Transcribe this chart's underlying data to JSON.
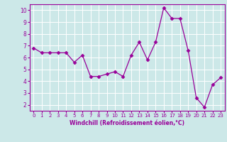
{
  "x": [
    0,
    1,
    2,
    3,
    4,
    5,
    6,
    7,
    8,
    9,
    10,
    11,
    12,
    13,
    14,
    15,
    16,
    17,
    18,
    19,
    20,
    21,
    22,
    23
  ],
  "y": [
    6.8,
    6.4,
    6.4,
    6.4,
    6.4,
    5.6,
    6.2,
    4.4,
    4.4,
    4.6,
    4.8,
    4.4,
    6.2,
    7.3,
    5.8,
    7.3,
    10.2,
    9.3,
    9.3,
    6.6,
    2.6,
    1.8,
    3.7,
    4.3
  ],
  "line_color": "#990099",
  "marker": "D",
  "markersize": 2.5,
  "linewidth": 0.9,
  "xlabel": "Windchill (Refroidissement éolien,°C)",
  "xlim": [
    -0.5,
    23.5
  ],
  "ylim": [
    1.5,
    10.5
  ],
  "yticks": [
    2,
    3,
    4,
    5,
    6,
    7,
    8,
    9,
    10
  ],
  "xticks": [
    0,
    1,
    2,
    3,
    4,
    5,
    6,
    7,
    8,
    9,
    10,
    11,
    12,
    13,
    14,
    15,
    16,
    17,
    18,
    19,
    20,
    21,
    22,
    23
  ],
  "bg_color": "#cce8e8",
  "grid_color": "#ffffff",
  "tick_color": "#990099",
  "label_color": "#990099",
  "xlabel_fontsize": 5.5,
  "xtick_fontsize": 5.0,
  "ytick_fontsize": 5.5
}
